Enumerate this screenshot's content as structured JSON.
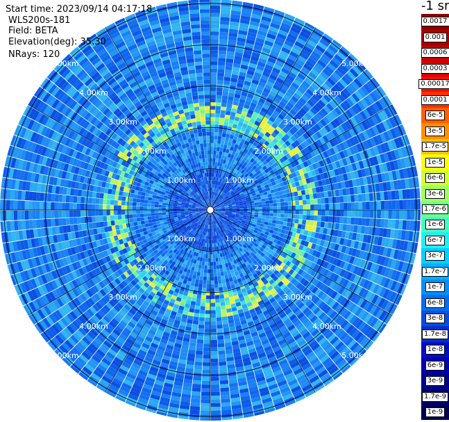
{
  "info": {
    "start_time": "Start time: 2023/09/14 04:17:18",
    "instrument": "WLS200s-181",
    "field": "Field: BETA",
    "elevation": "Elevation(deg): 35.30",
    "nrays": "NRays: 120"
  },
  "colorbar": {
    "title": "-1 sr",
    "labels": [
      "0.0017",
      "0.001",
      "0.0006",
      "0.0003",
      "0.00017",
      "0.0001",
      "6e-5",
      "3e-5",
      "1.7e-5",
      "1e-5",
      "6e-6",
      "3e-6",
      "1.7e-6",
      "1e-6",
      "6e-7",
      "3e-7",
      "1.7e-7",
      "1e-7",
      "6e-8",
      "3e-8",
      "1.7e-8",
      "1e-8",
      "6e-9",
      "3e-9",
      "1.7e-9",
      "1e-9"
    ],
    "colors": [
      "#8b0000",
      "#a80000",
      "#c00000",
      "#d80000",
      "#f01000",
      "#ff3000",
      "#ff6000",
      "#ff9000",
      "#ffc000",
      "#ffff00",
      "#d0ff30",
      "#a0ff60",
      "#70ff90",
      "#40ffc0",
      "#20f0f0",
      "#00d0ff",
      "#00b0ff",
      "#0090ff",
      "#0070f0",
      "#0050e0",
      "#0030d0",
      "#0010c0",
      "#0000b0",
      "#000090",
      "#000070",
      "#000050"
    ]
  },
  "chart_data": {
    "type": "heatmap",
    "projection": "polar PPI",
    "n_rays": 120,
    "range_unit": "km",
    "range_rings_km": [
      1,
      2,
      3,
      4,
      5
    ],
    "ring_labels": [
      "1.00km",
      "2.00km",
      "3.00km",
      "4.00km",
      "5.00km"
    ],
    "max_range_km": 5.1,
    "scale": "log",
    "value_range": [
      1e-09,
      0.0017
    ],
    "background_level": "1e-8 to 1e-7",
    "features": [
      {
        "range_km": [
          2.0,
          2.6
        ],
        "level": "1e-6 to 1e-5"
      },
      {
        "range_km": [
          0.0,
          1.0
        ],
        "level": "1e-8 to 3e-8"
      }
    ]
  }
}
